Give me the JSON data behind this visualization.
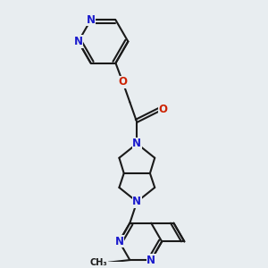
{
  "bg_color": "#e8edf0",
  "bond_color": "#1a1a1a",
  "n_color": "#1a1acc",
  "o_color": "#cc2200",
  "bond_width": 1.5,
  "font_size": 8.5,
  "font_size_small": 7.0,
  "figsize": [
    3.0,
    3.0
  ],
  "dpi": 100,
  "xlim": [
    -1.5,
    8.5
  ],
  "ylim": [
    -0.5,
    10.5
  ]
}
